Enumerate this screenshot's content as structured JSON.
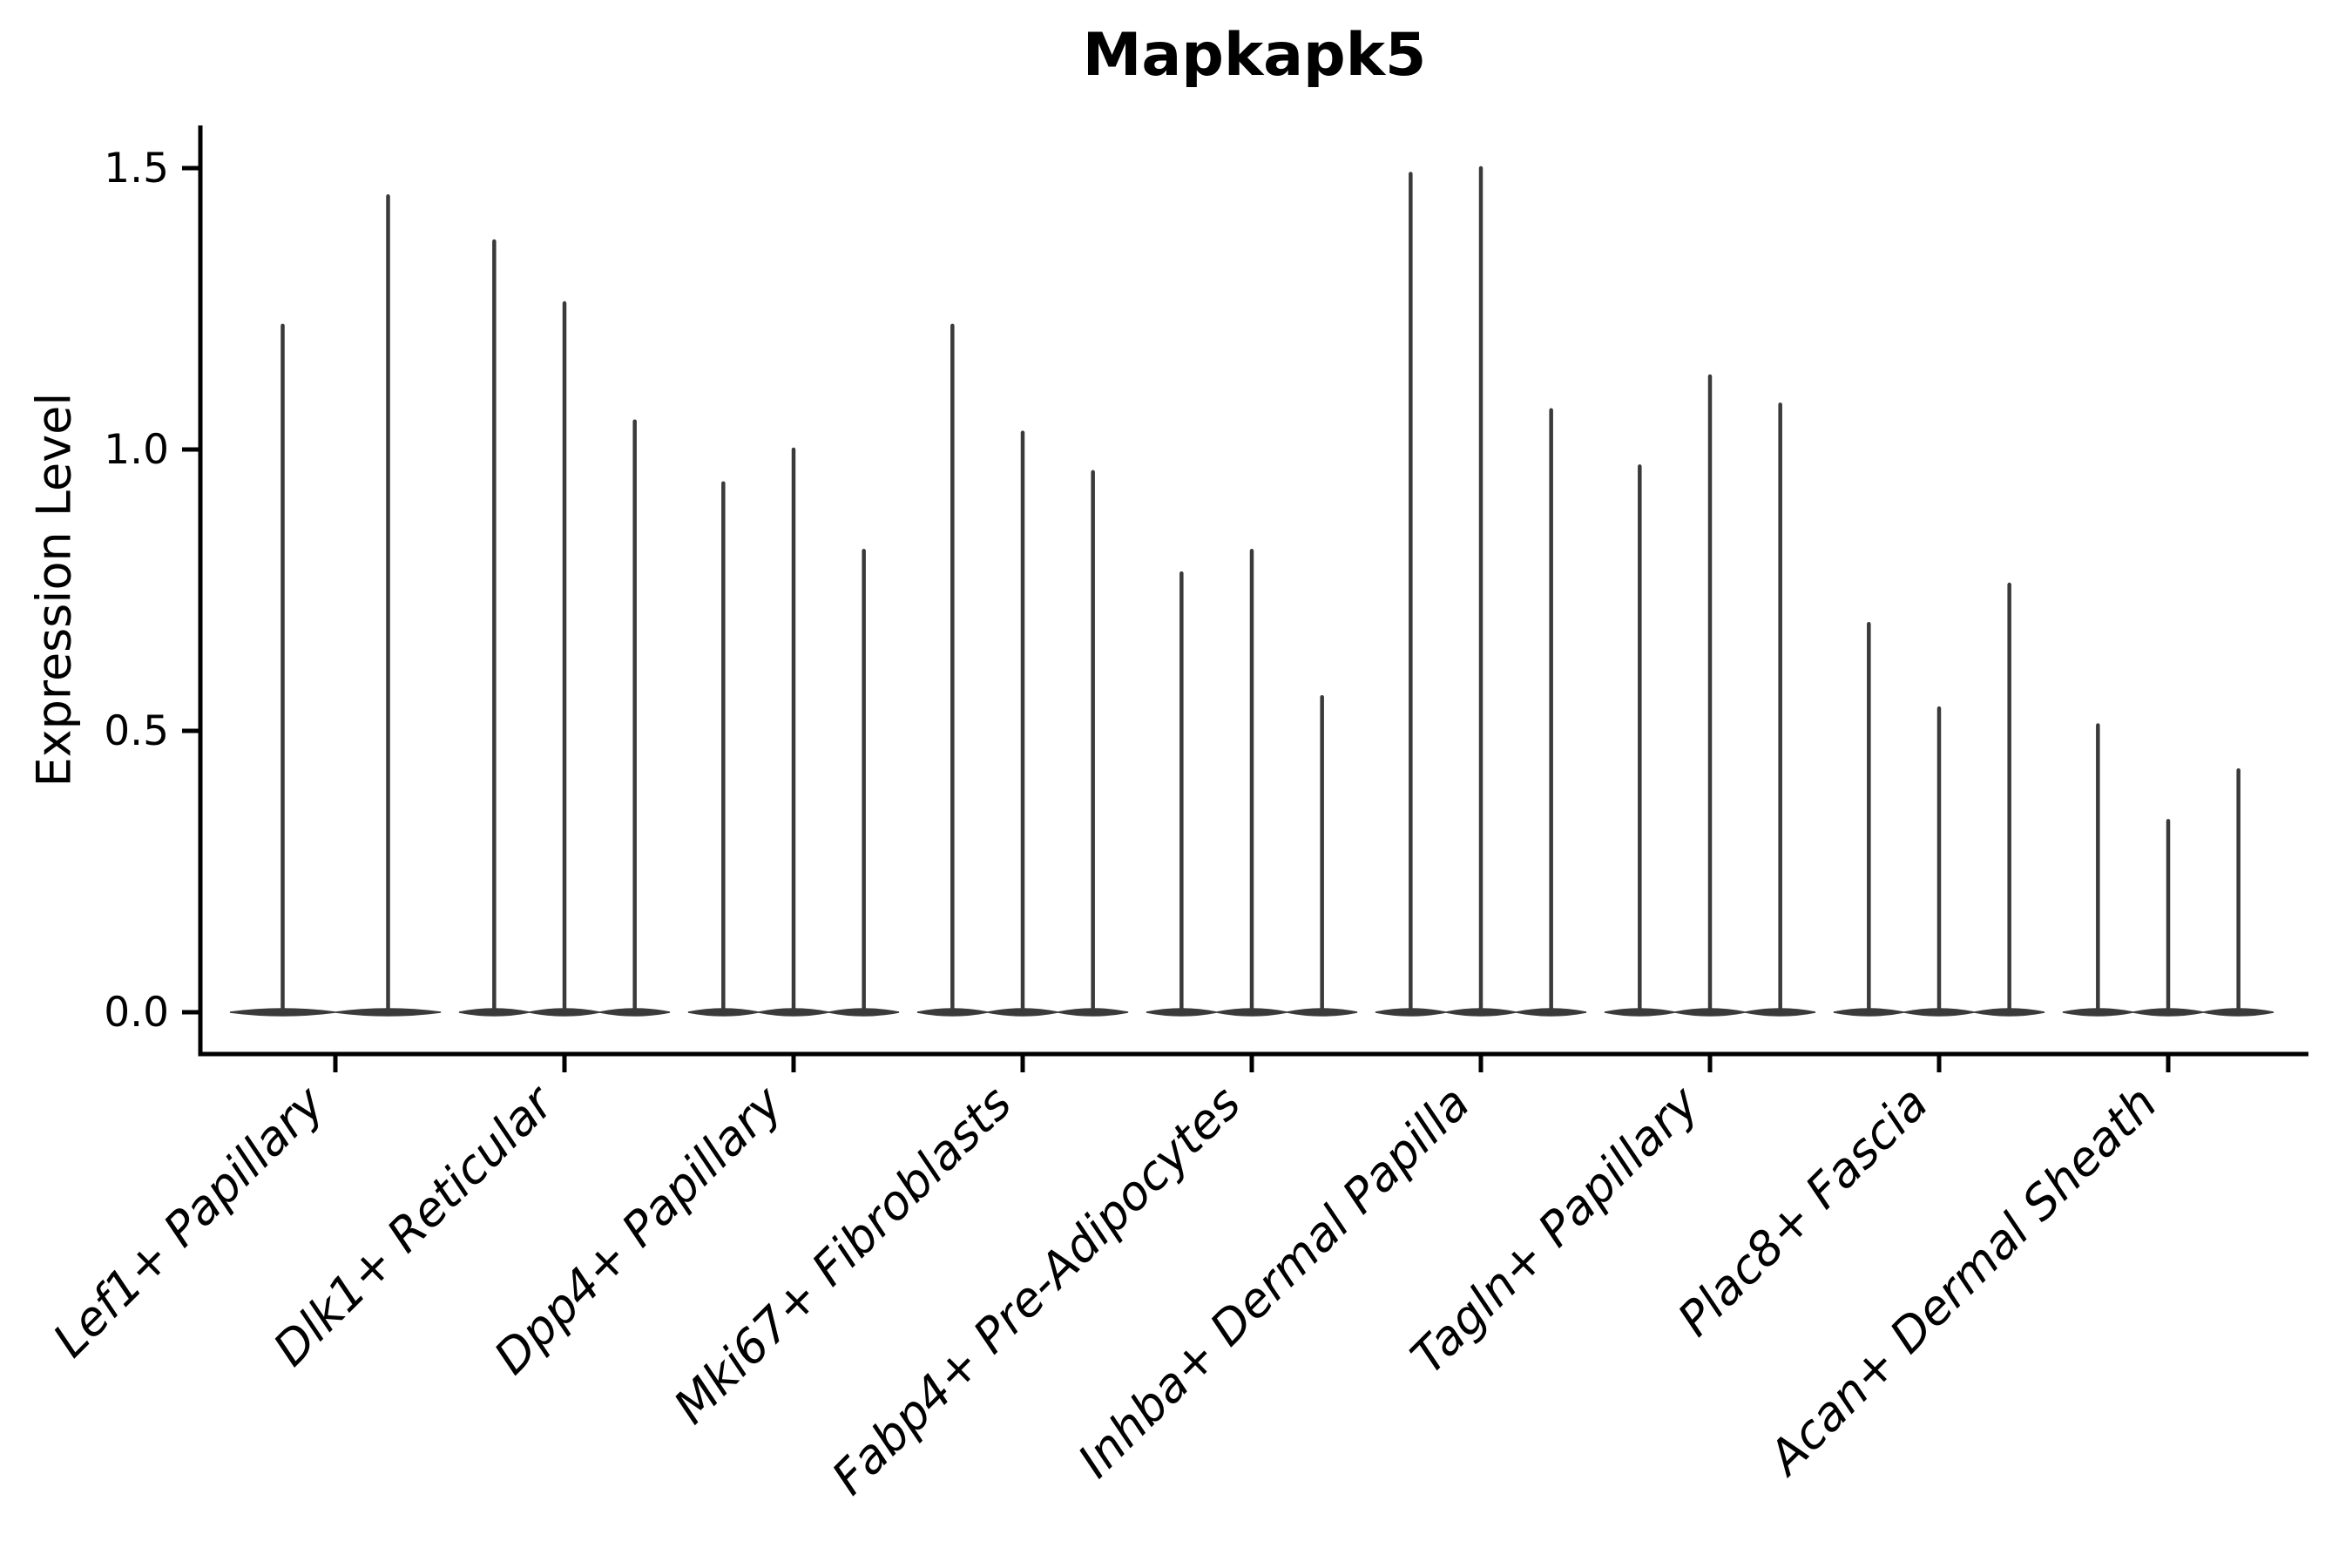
{
  "chart_data": {
    "type": "violin",
    "title": "Mapkapk5",
    "ylabel": "Expression Level",
    "xlabel": "",
    "ylim": [
      -0.07,
      1.58
    ],
    "yticks": [
      0.0,
      0.5,
      1.0,
      1.5
    ],
    "ytick_labels": [
      "0.0",
      "0.5",
      "1.0",
      "1.5"
    ],
    "grid": false,
    "legend_position": "none",
    "categories": [
      "Lef1+ Papillary",
      "Dlk1+ Reticular",
      "Dpp4+ Papillary",
      "Mki67+ Fibroblasts",
      "Fabp4+ Pre-Adipocytes",
      "Inhba+ Dermal Papilla",
      "Tagln+ Papillary",
      "Plac8+ Fascia",
      "Acan+ Dermal Sheath"
    ],
    "series": [
      {
        "name": "Lef1+ Papillary",
        "violin_max_values": [
          1.22,
          1.45
        ]
      },
      {
        "name": "Dlk1+ Reticular",
        "violin_max_values": [
          1.37,
          1.26,
          1.05
        ]
      },
      {
        "name": "Dpp4+ Papillary",
        "violin_max_values": [
          0.94,
          1.0,
          0.82
        ]
      },
      {
        "name": "Mki67+ Fibroblasts",
        "violin_max_values": [
          1.22,
          1.03,
          0.96
        ]
      },
      {
        "name": "Fabp4+ Pre-Adipocytes",
        "violin_max_values": [
          0.78,
          0.82,
          0.56
        ]
      },
      {
        "name": "Inhba+ Dermal Papilla",
        "violin_max_values": [
          1.49,
          1.5,
          1.07
        ]
      },
      {
        "name": "Tagln+ Papillary",
        "violin_max_values": [
          0.97,
          1.13,
          1.08
        ]
      },
      {
        "name": "Plac8+ Fascia",
        "violin_max_values": [
          0.69,
          0.54,
          0.76
        ]
      },
      {
        "name": "Acan+ Dermal Sheath",
        "violin_max_values": [
          0.51,
          0.34,
          0.43
        ]
      }
    ],
    "violin_color": "#3a3a3a",
    "axis_color": "#000000",
    "note": "Each category shows 2-3 very thin violins: a flat lens-shaped base at expression 0 and a thin spike whose top equals the listed max expression value."
  }
}
